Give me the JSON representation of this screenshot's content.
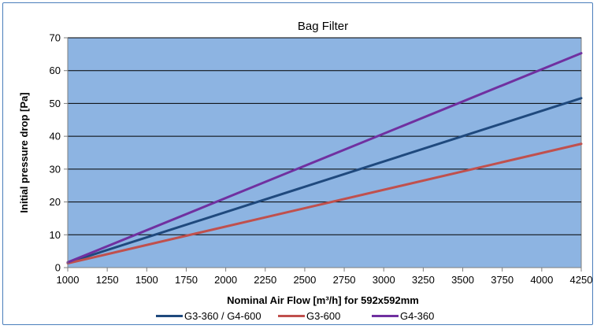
{
  "chart_data": {
    "type": "line",
    "title": "Bag Filter",
    "xlabel": "Nominal Air Flow [m³/h] for 592x592mm",
    "ylabel": "Initial pressure drop [Pa]",
    "xlim": [
      1000,
      4250
    ],
    "ylim": [
      0,
      70
    ],
    "xticks": [
      1000,
      1250,
      1500,
      1750,
      2000,
      2250,
      2500,
      2750,
      3000,
      3250,
      3500,
      3750,
      4000,
      4250
    ],
    "yticks": [
      0,
      10,
      20,
      30,
      40,
      50,
      60,
      70
    ],
    "grid": "horizontal",
    "plot_background": "#8db4e2",
    "legend_position": "bottom",
    "series": [
      {
        "name": "G3-360 / G4-600",
        "color": "#1f497d",
        "x": [
          1000,
          4250
        ],
        "y": [
          1.5,
          51.6
        ]
      },
      {
        "name": "G3-600",
        "color": "#c0504d",
        "x": [
          1000,
          4250
        ],
        "y": [
          1.3,
          37.7
        ]
      },
      {
        "name": "G4-360",
        "color": "#7030a0",
        "x": [
          1000,
          4250
        ],
        "y": [
          1.6,
          65.3
        ]
      }
    ]
  }
}
